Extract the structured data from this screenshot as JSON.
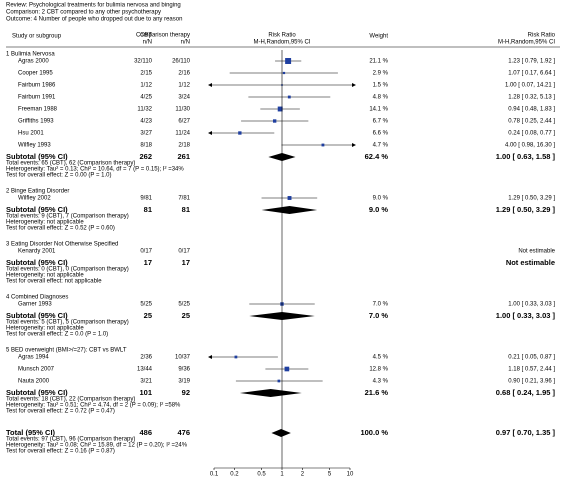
{
  "chart_data": {
    "type": "forest",
    "header": [
      "Review:   Psychological treatments for bulimia nervosa and binging",
      "Comparison:   2 CBT compared to any other psychotherapy",
      "Outcome:   4 Number of people who dropped out due to any reason"
    ],
    "columns": {
      "study": "Study or subgroup",
      "cbt": [
        "CBT",
        "n/N"
      ],
      "comparison": [
        "Comparison therapy",
        "n/N"
      ],
      "plot": [
        "Risk Ratio",
        "M-H,Random,95% CI"
      ],
      "weight": "Weight",
      "result": [
        "Risk Ratio",
        "M-H,Random,95% CI"
      ]
    },
    "xlim": [
      0.1,
      10
    ],
    "xticks": [
      0.1,
      0.2,
      0.5,
      1,
      2,
      5,
      10
    ],
    "log": true,
    "square_color": "#1f3fa0",
    "groups": [
      {
        "heading": "1 Bulimia Nervosa",
        "studies": [
          {
            "name": "Agras 2000",
            "cbt": "32/110",
            "comparison": "26/110",
            "weight": 21.1,
            "weight_label": "21.1 %",
            "rr": 1.23,
            "lo": 0.79,
            "hi": 1.92,
            "rr_label": "1.23 [ 0.79, 1.92 ]"
          },
          {
            "name": "Cooper 1995",
            "cbt": "2/15",
            "comparison": "2/16",
            "weight": 2.9,
            "weight_label": "2.9 %",
            "rr": 1.07,
            "lo": 0.17,
            "hi": 6.64,
            "rr_label": "1.07 [ 0.17, 6.64 ]"
          },
          {
            "name": "Fairburn 1986",
            "cbt": "1/12",
            "comparison": "1/12",
            "weight": 1.5,
            "weight_label": "1.5 %",
            "rr": 1.0,
            "lo": 0.07,
            "hi": 14.21,
            "rr_label": "1.00 [ 0.07, 14.21 ]"
          },
          {
            "name": "Fairburn 1991",
            "cbt": "4/25",
            "comparison": "3/24",
            "weight": 4.8,
            "weight_label": "4.8 %",
            "rr": 1.28,
            "lo": 0.32,
            "hi": 5.13,
            "rr_label": "1.28 [ 0.32, 5.13 ]"
          },
          {
            "name": "Freeman 1988",
            "cbt": "11/32",
            "comparison": "11/30",
            "weight": 14.1,
            "weight_label": "14.1 %",
            "rr": 0.94,
            "lo": 0.48,
            "hi": 1.83,
            "rr_label": "0.94 [ 0.48, 1.83 ]"
          },
          {
            "name": "Griffiths 1993",
            "cbt": "4/23",
            "comparison": "6/27",
            "weight": 6.7,
            "weight_label": "6.7 %",
            "rr": 0.78,
            "lo": 0.25,
            "hi": 2.44,
            "rr_label": "0.78 [ 0.25, 2.44 ]"
          },
          {
            "name": "Hsu 2001",
            "cbt": "3/27",
            "comparison": "11/24",
            "weight": 6.6,
            "weight_label": "6.6 %",
            "rr": 0.24,
            "lo": 0.08,
            "hi": 0.77,
            "rr_label": "0.24 [ 0.08, 0.77 ]"
          },
          {
            "name": "Wilfley 1993",
            "cbt": "8/18",
            "comparison": "2/18",
            "weight": 4.7,
            "weight_label": "4.7 %",
            "rr": 4.0,
            "lo": 0.98,
            "hi": 16.3,
            "rr_label": "4.00 [ 0.98, 16.30 ]"
          }
        ],
        "subtotal": {
          "label": "Subtotal (95% CI)",
          "cbt": "262",
          "comparison": "261",
          "weight_label": "62.4 %",
          "rr": 1.0,
          "lo": 0.63,
          "hi": 1.58,
          "rr_label": "1.00 [ 0.63, 1.58 ]"
        },
        "notes": [
          "Total events: 65 (CBT), 62 (Comparison therapy)",
          "Heterogeneity: Tau² = 0.13; Chi² = 10.64, df = 7 (P = 0.15); I² =34%",
          "Test for overall effect: Z = 0.00 (P = 1.0)"
        ]
      },
      {
        "heading": "2 Binge Eating Disorder",
        "studies": [
          {
            "name": "Wilfley 2002",
            "cbt": "9/81",
            "comparison": "7/81",
            "weight": 9.0,
            "weight_label": "9.0 %",
            "rr": 1.29,
            "lo": 0.5,
            "hi": 3.29,
            "rr_label": "1.29 [ 0.50, 3.29 ]"
          }
        ],
        "subtotal": {
          "label": "Subtotal (95% CI)",
          "cbt": "81",
          "comparison": "81",
          "weight_label": "9.0 %",
          "rr": 1.29,
          "lo": 0.5,
          "hi": 3.29,
          "rr_label": "1.29 [ 0.50, 3.29 ]"
        },
        "notes": [
          "Total events: 9 (CBT), 7 (Comparison therapy)",
          "Heterogeneity: not applicable",
          "Test for overall effect: Z = 0.52 (P = 0.60)"
        ]
      },
      {
        "heading": "3 Eating Disorder Not Otherwise Specified",
        "studies": [
          {
            "name": "Kenardy 2001",
            "cbt": "0/17",
            "comparison": "0/17",
            "rr_label": "Not estimable"
          }
        ],
        "subtotal": {
          "label": "Subtotal (95% CI)",
          "cbt": "17",
          "comparison": "17",
          "rr_label": "Not estimable"
        },
        "notes": [
          "Total events: 0 (CBT), 0 (Comparison therapy)",
          "Heterogeneity: not applicable",
          "Test for overall effect: not applicable"
        ]
      },
      {
        "heading": "4 Combined Diagnoses",
        "studies": [
          {
            "name": "Garner 1993",
            "cbt": "5/25",
            "comparison": "5/25",
            "weight": 7.0,
            "weight_label": "7.0 %",
            "rr": 1.0,
            "lo": 0.33,
            "hi": 3.03,
            "rr_label": "1.00 [ 0.33, 3.03 ]"
          }
        ],
        "subtotal": {
          "label": "Subtotal (95% CI)",
          "cbt": "25",
          "comparison": "25",
          "weight_label": "7.0 %",
          "rr": 1.0,
          "lo": 0.33,
          "hi": 3.03,
          "rr_label": "1.00 [ 0.33, 3.03 ]"
        },
        "notes": [
          "Total events: 5 (CBT), 5 (Comparison therapy)",
          "Heterogeneity: not applicable",
          "Test for overall effect: Z = 0.0 (P = 1.0)"
        ]
      },
      {
        "heading": "5 BED overweight (BMI>/=27): CBT vs BWLT",
        "studies": [
          {
            "name": "Agras 1994",
            "cbt": "2/36",
            "comparison": "10/37",
            "weight": 4.5,
            "weight_label": "4.5 %",
            "rr": 0.21,
            "lo": 0.05,
            "hi": 0.87,
            "rr_label": "0.21 [ 0.05, 0.87 ]"
          },
          {
            "name": "Munsch 2007",
            "cbt": "13/44",
            "comparison": "9/36",
            "weight": 12.8,
            "weight_label": "12.8 %",
            "rr": 1.18,
            "lo": 0.57,
            "hi": 2.44,
            "rr_label": "1.18 [ 0.57, 2.44 ]"
          },
          {
            "name": "Nauta 2000",
            "cbt": "3/21",
            "comparison": "3/19",
            "weight": 4.3,
            "weight_label": "4.3 %",
            "rr": 0.9,
            "lo": 0.21,
            "hi": 3.96,
            "rr_label": "0.90 [ 0.21, 3.96 ]"
          }
        ],
        "subtotal": {
          "label": "Subtotal (95% CI)",
          "cbt": "101",
          "comparison": "92",
          "weight_label": "21.6 %",
          "rr": 0.68,
          "lo": 0.24,
          "hi": 1.95,
          "rr_label": "0.68 [ 0.24, 1.95 ]"
        },
        "notes": [
          "Total events: 18 (CBT), 22 (Comparison therapy)",
          "Heterogeneity: Tau² = 0.51; Chi² = 4.74, df = 2 (P = 0.09); I² =58%",
          "Test for overall effect: Z = 0.72 (P = 0.47)"
        ]
      }
    ],
    "total": {
      "label": "Total (95% CI)",
      "cbt": "486",
      "comparison": "476",
      "weight_label": "100.0 %",
      "rr": 0.97,
      "lo": 0.7,
      "hi": 1.35,
      "rr_label": "0.97 [ 0.70, 1.35 ]",
      "notes": [
        "Total events: 97 (CBT), 96 (Comparison therapy)",
        "Heterogeneity: Tau² = 0.08; Chi² = 15.89, df = 12 (P = 0.20); I² =24%",
        "Test for overall effect: Z = 0.16 (P = 0.87)"
      ]
    }
  }
}
